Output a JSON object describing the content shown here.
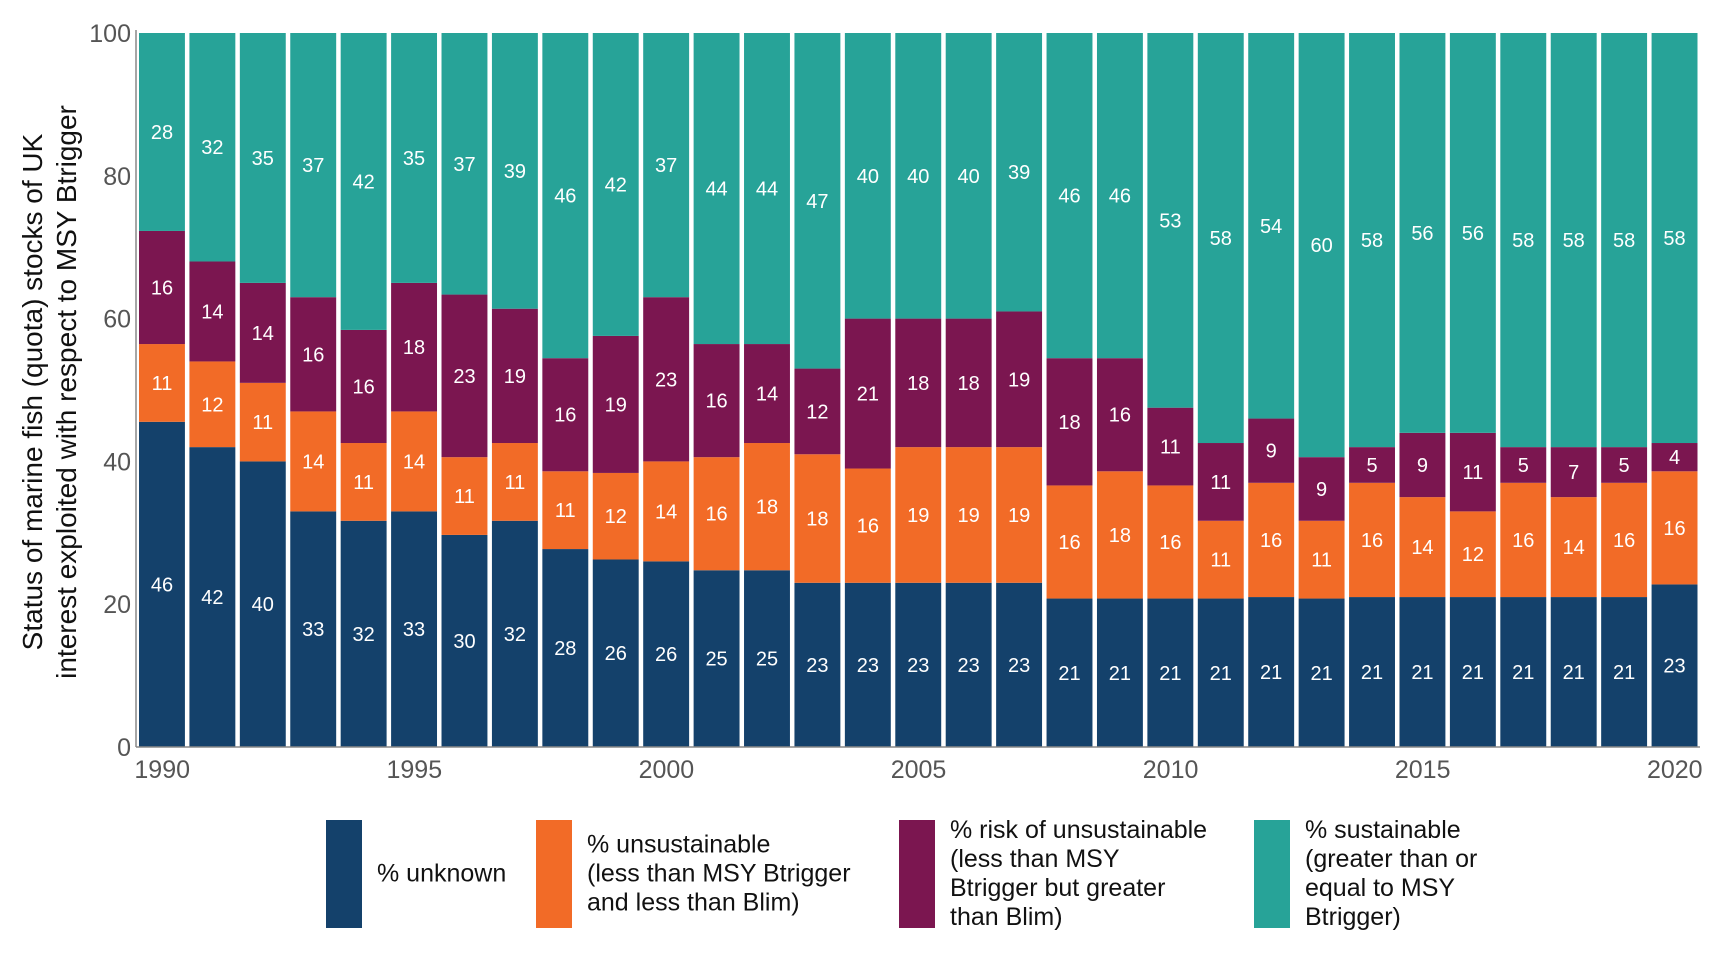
{
  "chart_data": {
    "type": "bar",
    "stacked": true,
    "ylabel": [
      "Status of marine fish (quota) stocks of UK",
      "interest exploited with respect to MSY Btrigger"
    ],
    "xlabel": "",
    "ylim": [
      0,
      100
    ],
    "yticks": [
      "0",
      "20",
      "40",
      "60",
      "80",
      "100"
    ],
    "xticks": [
      "1990",
      "1995",
      "2000",
      "2005",
      "2010",
      "2015",
      "2020"
    ],
    "grid": false,
    "legend_position": "bottom",
    "categories": [
      1990,
      1991,
      1992,
      1993,
      1994,
      1995,
      1996,
      1997,
      1998,
      1999,
      2000,
      2001,
      2002,
      2003,
      2004,
      2005,
      2006,
      2007,
      2008,
      2009,
      2010,
      2011,
      2012,
      2013,
      2014,
      2015,
      2016,
      2017,
      2018,
      2019,
      2020
    ],
    "series": [
      {
        "name": "% unknown",
        "legend": [
          "% unknown"
        ],
        "color": "#14416b",
        "values": [
          46,
          42,
          40,
          33,
          32,
          33,
          30,
          32,
          28,
          26,
          26,
          25,
          25,
          23,
          23,
          23,
          23,
          23,
          21,
          21,
          21,
          21,
          21,
          21,
          21,
          21,
          21,
          21,
          21,
          21,
          23
        ]
      },
      {
        "name": "% unsustainable (less than MSY Btrigger and less than Blim)",
        "legend": [
          "% unsustainable",
          "(less than MSY Btrigger",
          "and less than Blim)"
        ],
        "color": "#f26b27",
        "values": [
          11,
          12,
          11,
          14,
          11,
          14,
          11,
          11,
          11,
          12,
          14,
          16,
          18,
          18,
          16,
          19,
          19,
          19,
          16,
          18,
          16,
          11,
          16,
          11,
          16,
          14,
          12,
          16,
          14,
          16,
          16
        ]
      },
      {
        "name": "% risk of unsustainable (less than MSY Btrigger but greater than Blim)",
        "legend": [
          "% risk of unsustainable",
          "(less than MSY",
          "Btrigger but greater",
          "than Blim)"
        ],
        "color": "#7b1650",
        "values": [
          16,
          14,
          14,
          16,
          16,
          18,
          23,
          19,
          16,
          19,
          23,
          16,
          14,
          12,
          21,
          18,
          18,
          19,
          18,
          16,
          11,
          11,
          9,
          9,
          5,
          9,
          11,
          5,
          7,
          5,
          4
        ]
      },
      {
        "name": "% sustainable (greater than or equal to MSY Btrigger)",
        "legend": [
          "% sustainable",
          "(greater than or",
          "equal to MSY",
          "Btrigger)"
        ],
        "color": "#27a398",
        "values": [
          28,
          32,
          35,
          37,
          42,
          35,
          37,
          39,
          46,
          42,
          37,
          44,
          44,
          47,
          40,
          40,
          40,
          39,
          46,
          46,
          53,
          58,
          54,
          60,
          58,
          56,
          56,
          58,
          58,
          58,
          58
        ]
      }
    ]
  }
}
